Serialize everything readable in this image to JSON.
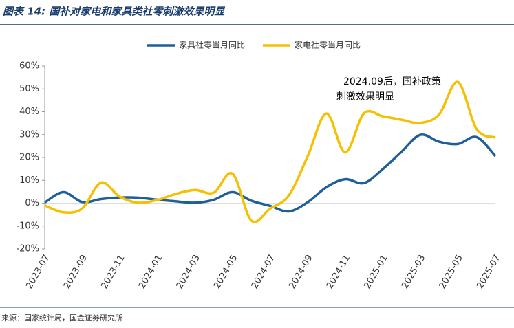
{
  "chart_data": {
    "type": "line",
    "title": "图表 14: 国补对家电和家具类社零刺激效果明显",
    "source": "来源：国家统计局，国金证券研究所",
    "annotation": [
      "2024.09后，国补政策",
      "刺激效果明显"
    ],
    "categories": [
      "2023-07",
      null,
      "2023-09",
      null,
      "2023-11",
      null,
      "2024-01",
      null,
      "2024-03",
      null,
      "2024-05",
      null,
      "2024-07",
      null,
      "2024-09",
      null,
      "2024-11",
      null,
      "2025-01",
      null,
      "2025-03",
      null,
      "2025-05",
      null,
      "2025-07"
    ],
    "series": [
      {
        "name": "家具社零当月同比",
        "color": "#1f5f99",
        "values": [
          0.3,
          4.8,
          0.5,
          1.8,
          2.5,
          2.4,
          1.5,
          0.8,
          0.2,
          1.5,
          4.8,
          1.1,
          -1.2,
          -3.6,
          0.4,
          7.0,
          10.5,
          8.8,
          14.9,
          22.5,
          29.9,
          26.9,
          25.9,
          28.9,
          20.6
        ]
      },
      {
        "name": "家电社零当月同比",
        "color": "#f5c000",
        "values": [
          -1.0,
          -4.0,
          -2.3,
          9.0,
          2.8,
          0.2,
          1.4,
          4.1,
          5.8,
          4.6,
          12.9,
          -7.6,
          -2.4,
          3.4,
          20.5,
          39.2,
          22.2,
          39.3,
          38.0,
          36.5,
          35.1,
          38.8,
          53.0,
          32.4,
          28.7
        ]
      }
    ],
    "ylim": [
      -20,
      60
    ],
    "yticks": [
      {
        "value": -20,
        "label": "-20%"
      },
      {
        "value": -10,
        "label": "-10%"
      },
      {
        "value": 0,
        "label": "0%"
      },
      {
        "value": 10,
        "label": "10%"
      },
      {
        "value": 20,
        "label": "20%"
      },
      {
        "value": 30,
        "label": "30%"
      },
      {
        "value": 40,
        "label": "40%"
      },
      {
        "value": 50,
        "label": "50%"
      },
      {
        "value": 60,
        "label": "60%"
      }
    ],
    "legend": "top"
  }
}
